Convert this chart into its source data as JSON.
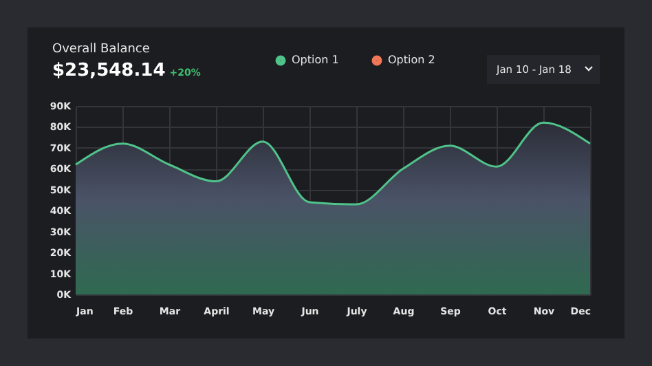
{
  "chart_data": {
    "type": "area",
    "title": "Overall Balance",
    "subtitle": "$23,548.14",
    "annotations": [
      "+20%",
      "Jan 10 - Jan 18"
    ],
    "categories": [
      "Jan",
      "Feb",
      "Mar",
      "April",
      "May",
      "Jun",
      "July",
      "Aug",
      "Sep",
      "Oct",
      "Nov",
      "Dec"
    ],
    "series": [
      {
        "name": "Option 1",
        "color": "#4fc38a",
        "values": [
          62000,
          72000,
          62000,
          54000,
          73000,
          44000,
          43000,
          60000,
          71000,
          61000,
          82000,
          72000
        ]
      },
      {
        "name": "Option 2",
        "color": "#f07858",
        "values": [
          null,
          null,
          null,
          null,
          null,
          null,
          null,
          null,
          null,
          null,
          null,
          null
        ]
      }
    ],
    "ylim": [
      0,
      90000
    ],
    "yticks": [
      {
        "value": 0,
        "label": "0K"
      },
      {
        "value": 10000,
        "label": "10K"
      },
      {
        "value": 20000,
        "label": "20K"
      },
      {
        "value": 30000,
        "label": "30K"
      },
      {
        "value": 40000,
        "label": "40K"
      },
      {
        "value": 50000,
        "label": "50K"
      },
      {
        "value": 60000,
        "label": "60K"
      },
      {
        "value": 70000,
        "label": "70K"
      },
      {
        "value": 80000,
        "label": "80K"
      },
      {
        "value": 90000,
        "label": "90K"
      }
    ],
    "grid": true,
    "legend": "top",
    "marker": "none",
    "line_style": "solid"
  }
}
